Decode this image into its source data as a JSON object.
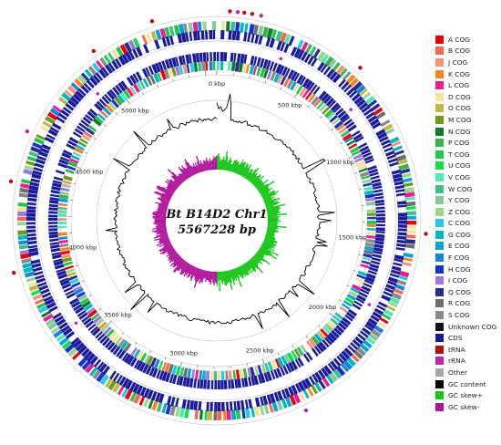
{
  "center": {
    "title": "Bt B14D2 Chr1",
    "size_label": "5567228 bp"
  },
  "genome_length_bp": 5567228,
  "tick_labels": [
    {
      "kbp": 0,
      "label": "0 kbp"
    },
    {
      "kbp": 500,
      "label": "500 kbp"
    },
    {
      "kbp": 1000,
      "label": "1000 kbp"
    },
    {
      "kbp": 1500,
      "label": "1500 kbp"
    },
    {
      "kbp": 2000,
      "label": "2000 kbp"
    },
    {
      "kbp": 2500,
      "label": "2500 kbp"
    },
    {
      "kbp": 3000,
      "label": "3000 kbp"
    },
    {
      "kbp": 3500,
      "label": "3500 kbp"
    },
    {
      "kbp": 4000,
      "label": "4000 kbp"
    },
    {
      "kbp": 4500,
      "label": "4500 kbp"
    },
    {
      "kbp": 5000,
      "label": "5000 kbp"
    }
  ],
  "legend": [
    {
      "label": "A COG",
      "color": "#e8000b"
    },
    {
      "label": "B COG",
      "color": "#f26b52"
    },
    {
      "label": "J COG",
      "color": "#f7937a"
    },
    {
      "label": "K COG",
      "color": "#f5831f"
    },
    {
      "label": "L COG",
      "color": "#ee1c8c"
    },
    {
      "label": "D COG",
      "color": "#f6e39a"
    },
    {
      "label": "O COG",
      "color": "#c2b84a"
    },
    {
      "label": "M COG",
      "color": "#6c9a1d"
    },
    {
      "label": "N COG",
      "color": "#0e7a2b"
    },
    {
      "label": "P COG",
      "color": "#38b44a"
    },
    {
      "label": "T COG",
      "color": "#22c64a"
    },
    {
      "label": "U COG",
      "color": "#11e04a"
    },
    {
      "label": "V COG",
      "color": "#52e8b6"
    },
    {
      "label": "W COG",
      "color": "#3fbf85"
    },
    {
      "label": "Y COG",
      "color": "#86ca9c"
    },
    {
      "label": "Z COG",
      "color": "#9ed58c"
    },
    {
      "label": "C COG",
      "color": "#25c8e6"
    },
    {
      "label": "G COG",
      "color": "#00b7c2"
    },
    {
      "label": "E COG",
      "color": "#0aa3d6"
    },
    {
      "label": "F COG",
      "color": "#1c84d8"
    },
    {
      "label": "H COG",
      "color": "#1733c8"
    },
    {
      "label": "I COG",
      "color": "#9a78e0"
    },
    {
      "label": "Q COG",
      "color": "#292c8f"
    },
    {
      "label": "R COG",
      "color": "#6f6f6f"
    },
    {
      "label": "S COG",
      "color": "#8a8a8a"
    },
    {
      "label": "Unknown COG",
      "color": "#111111"
    },
    {
      "label": "CDS",
      "color": "#1a1a9c"
    },
    {
      "label": "tRNA",
      "color": "#b01010"
    },
    {
      "label": "rRNA",
      "color": "#b72aa8"
    },
    {
      "label": "Other",
      "color": "#a6a6a6"
    },
    {
      "label": "GC content",
      "color": "#000000"
    },
    {
      "label": "GC skew+",
      "color": "#16c516"
    },
    {
      "label": "GC skew-",
      "color": "#b0139a"
    }
  ]
}
